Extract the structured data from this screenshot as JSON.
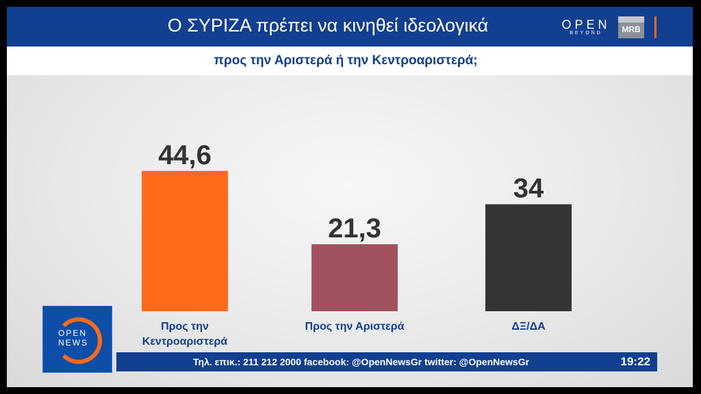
{
  "header": {
    "title": "Ο ΣΥΡΙΖΑ πρέπει να κινηθεί ιδεολογικά",
    "subtitle": "προς την Αριστερά ή την Κεντροαριστερά;",
    "channel_logo": "OPEN",
    "channel_logo_sub": "BEYOND",
    "partner_logo": "MRB"
  },
  "chart_data": {
    "type": "bar",
    "categories": [
      "Προς την Κεντροαριστερά",
      "Προς την Αριστερά",
      "ΔΞ/ΔΑ"
    ],
    "category_lines": [
      [
        "Προς την",
        "Κεντροαριστερά"
      ],
      [
        "Προς την Αριστερά"
      ],
      [
        "ΔΞ/ΔΑ"
      ]
    ],
    "values": [
      44.6,
      21.3,
      34
    ],
    "value_labels": [
      "44,6",
      "21,3",
      "34"
    ],
    "colors": [
      "#ff6a1a",
      "#a2525e",
      "#343434"
    ],
    "ylim": [
      0,
      50
    ],
    "grid": false,
    "title": "",
    "xlabel": "",
    "ylabel": ""
  },
  "logo": {
    "line1": "OPEN",
    "line2": "NEWS"
  },
  "ticker": {
    "text": "Τηλ. επικ.: 211 212 2000 facebook: @OpenNewsGr twitter: @OpenNewsGr",
    "time": "19:22"
  },
  "colors": {
    "brand_blue": "#123f8f",
    "accent_orange": "#ff6a1a"
  }
}
